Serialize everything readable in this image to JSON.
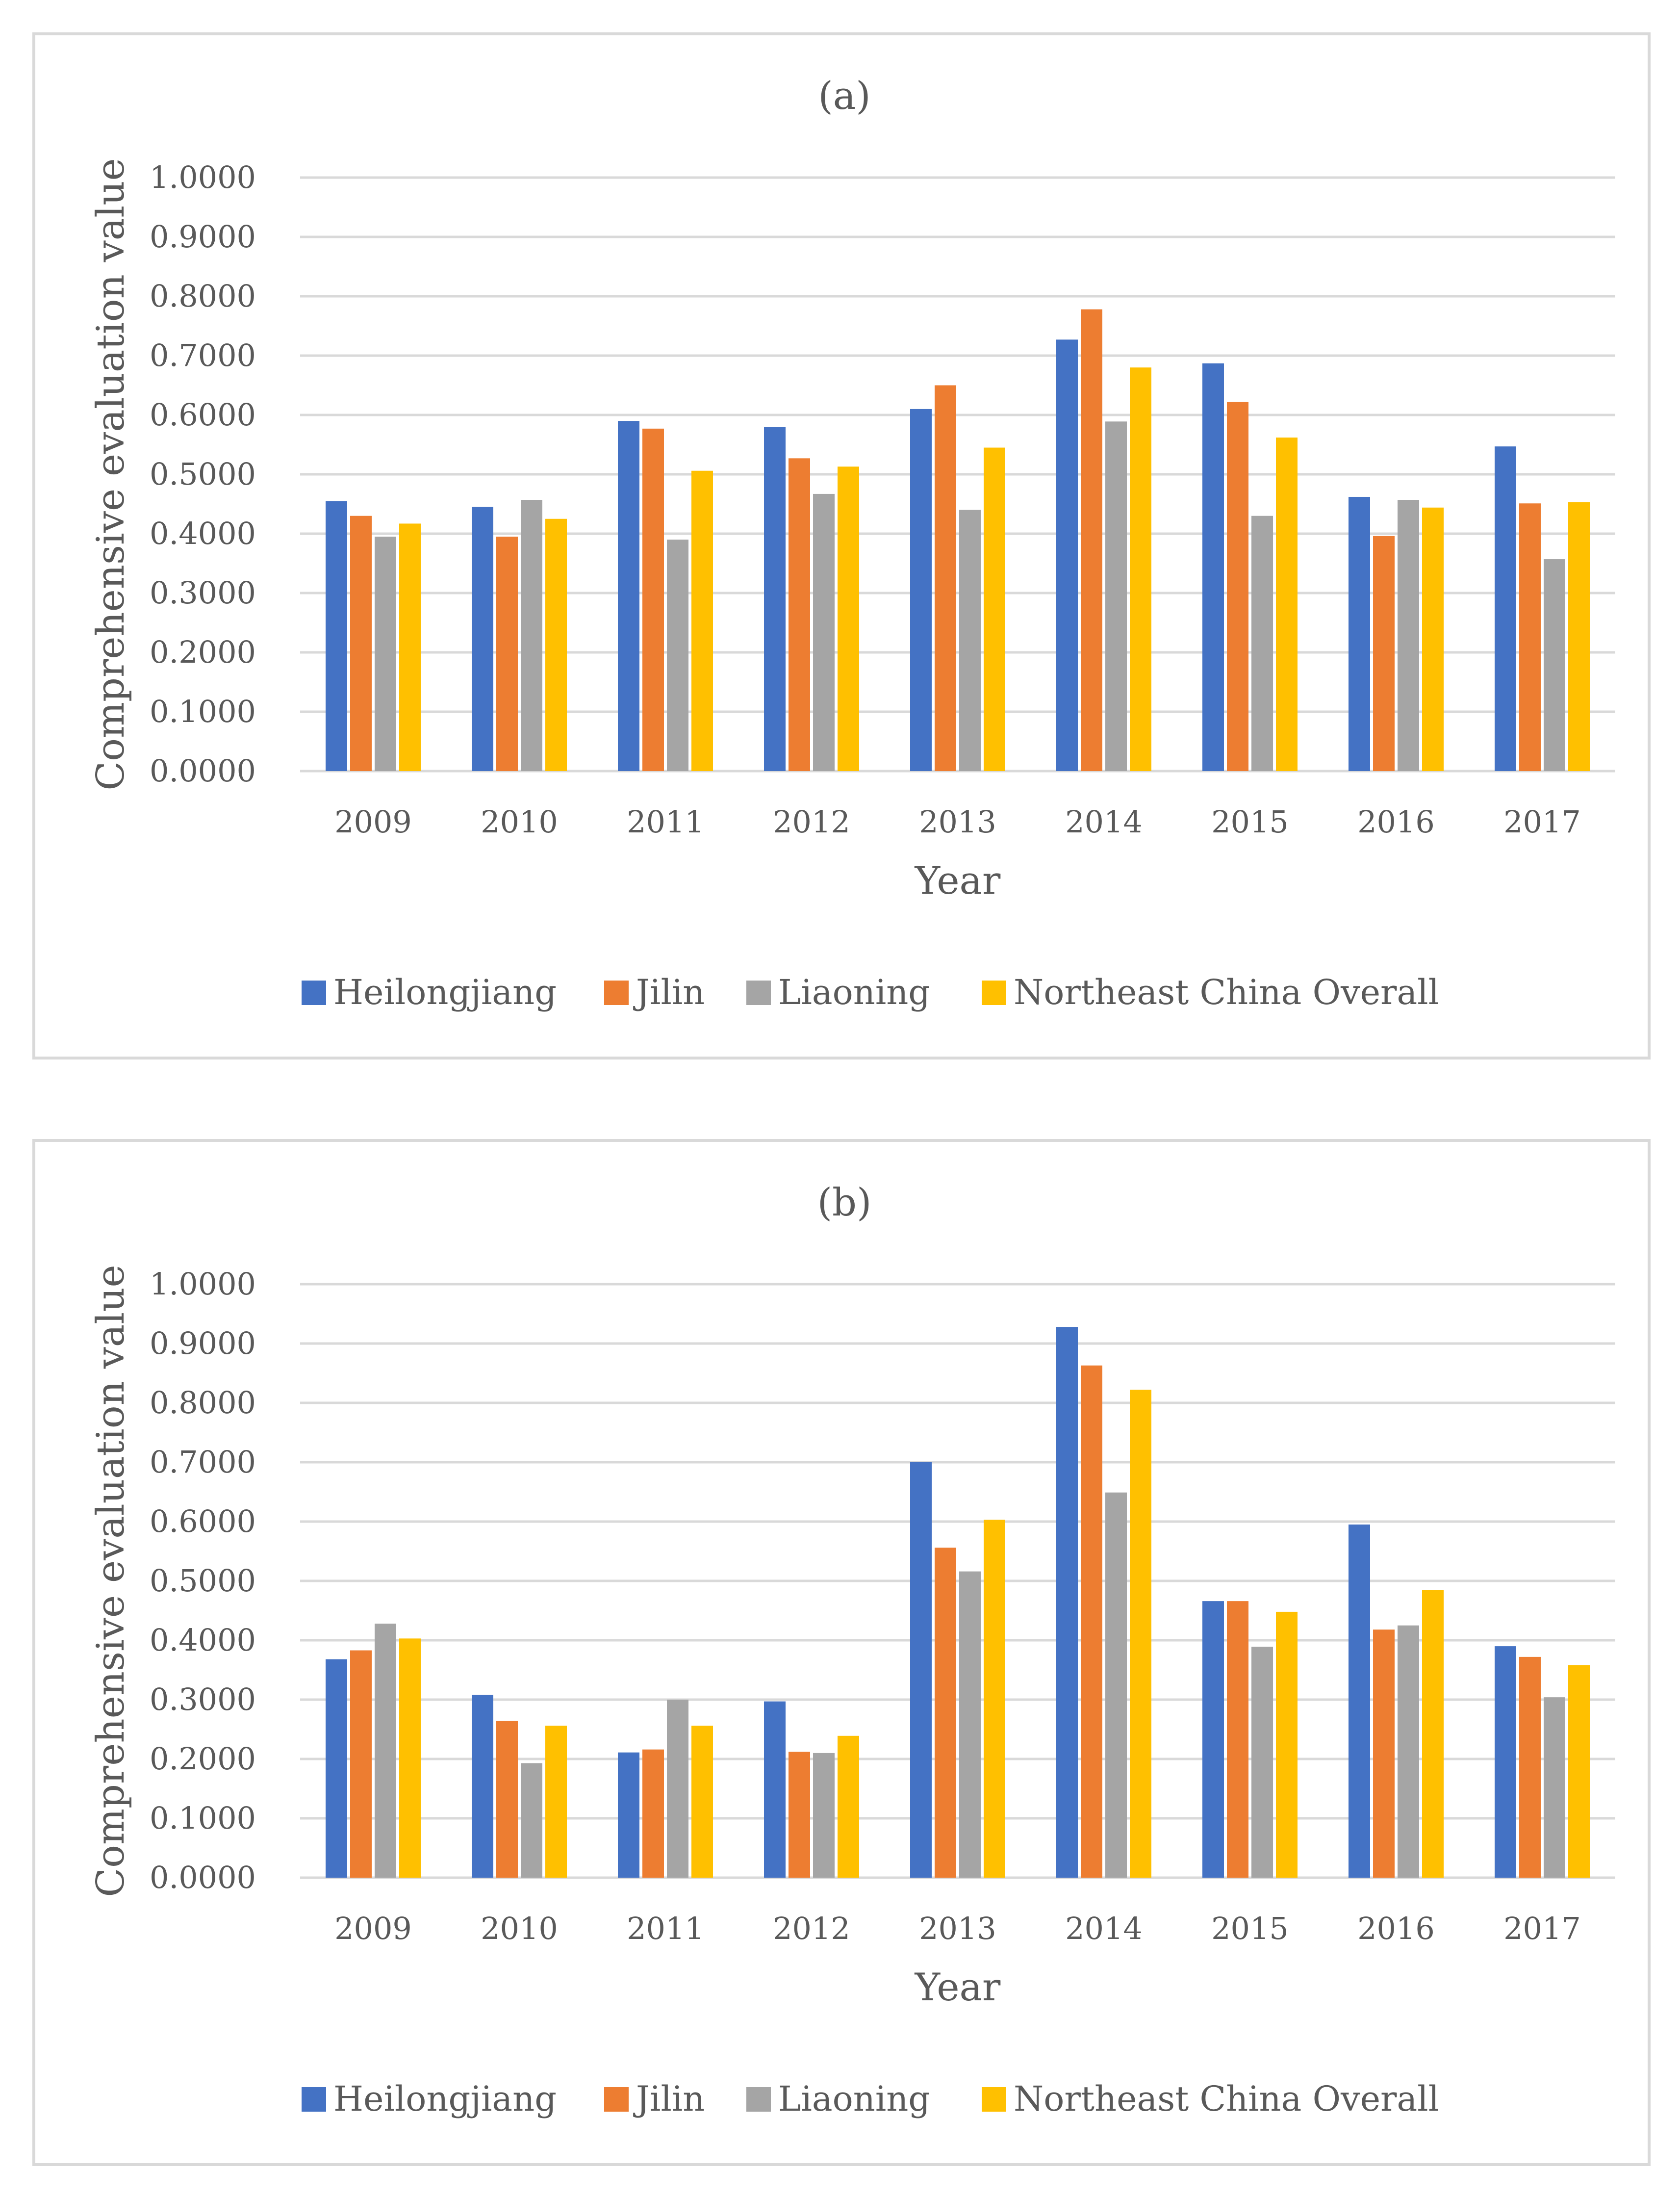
{
  "colors": {
    "Heilongjiang": "#4472c4",
    "Jilin": "#ed7d31",
    "Liaoning": "#a5a5a5",
    "Northeast China Overall": "#ffc000"
  },
  "chart_data": [
    {
      "type": "bar",
      "title": "(a)",
      "xlabel": "Year",
      "ylabel": "Comprehensive evaluation value",
      "ylim": [
        0,
        1
      ],
      "yticks": [
        "0.0000",
        "0.1000",
        "0.2000",
        "0.3000",
        "0.4000",
        "0.5000",
        "0.6000",
        "0.7000",
        "0.8000",
        "0.9000",
        "1.0000"
      ],
      "categories": [
        "2009",
        "2010",
        "2011",
        "2012",
        "2013",
        "2014",
        "2015",
        "2016",
        "2017"
      ],
      "series": [
        {
          "name": "Heilongjiang",
          "values": [
            0.455,
            0.445,
            0.59,
            0.58,
            0.61,
            0.727,
            0.687,
            0.462,
            0.547
          ]
        },
        {
          "name": "Jilin",
          "values": [
            0.43,
            0.395,
            0.577,
            0.527,
            0.65,
            0.778,
            0.622,
            0.396,
            0.451
          ]
        },
        {
          "name": "Liaoning",
          "values": [
            0.395,
            0.457,
            0.39,
            0.467,
            0.44,
            0.589,
            0.43,
            0.457,
            0.357
          ]
        },
        {
          "name": "Northeast China Overall",
          "values": [
            0.417,
            0.425,
            0.506,
            0.513,
            0.545,
            0.68,
            0.562,
            0.444,
            0.453
          ]
        }
      ],
      "legend": "bottom"
    },
    {
      "type": "bar",
      "title": "(b)",
      "xlabel": "Year",
      "ylabel": "Comprehensive evaluation value",
      "ylim": [
        0,
        1
      ],
      "yticks": [
        "0.0000",
        "0.1000",
        "0.2000",
        "0.3000",
        "0.4000",
        "0.5000",
        "0.6000",
        "0.7000",
        "0.8000",
        "0.9000",
        "1.0000"
      ],
      "categories": [
        "2009",
        "2010",
        "2011",
        "2012",
        "2013",
        "2014",
        "2015",
        "2016",
        "2017"
      ],
      "series": [
        {
          "name": "Heilongjiang",
          "values": [
            0.368,
            0.308,
            0.211,
            0.297,
            0.7,
            0.928,
            0.466,
            0.595,
            0.39
          ]
        },
        {
          "name": "Jilin",
          "values": [
            0.383,
            0.264,
            0.216,
            0.212,
            0.556,
            0.863,
            0.466,
            0.418,
            0.372
          ]
        },
        {
          "name": "Liaoning",
          "values": [
            0.428,
            0.193,
            0.3,
            0.21,
            0.516,
            0.649,
            0.389,
            0.425,
            0.304
          ]
        },
        {
          "name": "Northeast China Overall",
          "values": [
            0.403,
            0.256,
            0.256,
            0.239,
            0.603,
            0.822,
            0.448,
            0.485,
            0.358
          ]
        }
      ],
      "legend": "bottom"
    }
  ]
}
